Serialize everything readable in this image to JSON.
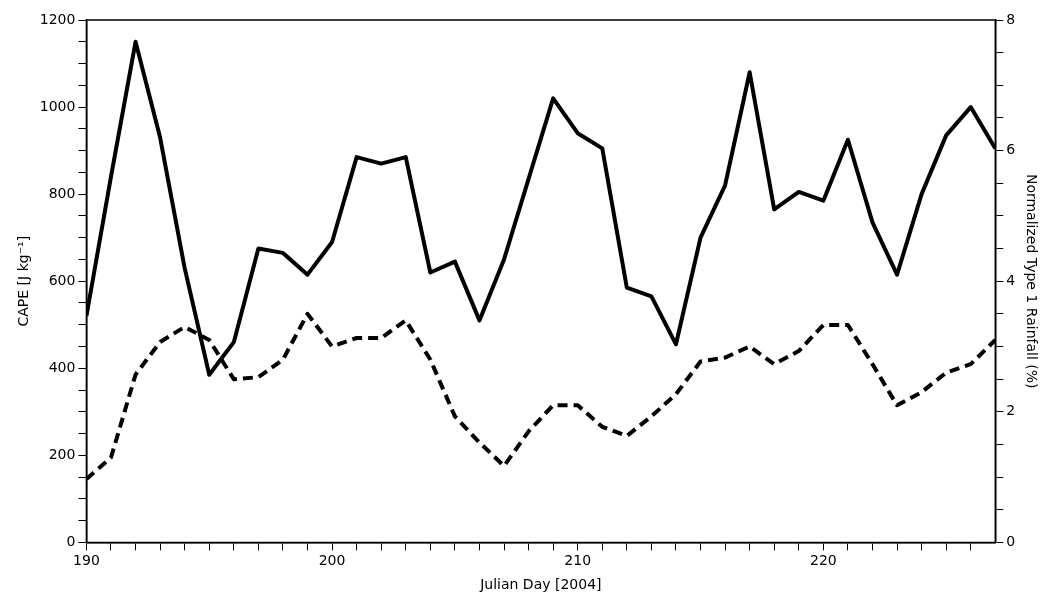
{
  "chart_data": {
    "type": "line",
    "xlabel": "Julian Day [2004]",
    "ylabel": "CAPE [J kg⁻¹]",
    "y2label": "Normalized Type 1 Rainfall (%)",
    "x": [
      190,
      191,
      192,
      193,
      194,
      195,
      196,
      197,
      198,
      199,
      200,
      201,
      202,
      203,
      204,
      205,
      206,
      207,
      208,
      209,
      210,
      211,
      212,
      213,
      214,
      215,
      216,
      217,
      218,
      219,
      220,
      221,
      222,
      223,
      224,
      225,
      226,
      227
    ],
    "series": [
      {
        "color": "#000000",
        "line_style": "solid",
        "values": [
          520,
          840,
          1150,
          930,
          630,
          385,
          460,
          675,
          665,
          615,
          690,
          885,
          870,
          885,
          620,
          645,
          510,
          650,
          835,
          1020,
          940,
          905,
          585,
          565,
          455,
          700,
          820,
          1080,
          765,
          805,
          785,
          925,
          735,
          615,
          800,
          935,
          1000,
          905
        ]
      },
      {
        "color": "#000000",
        "line_style": "dashed",
        "axis": "y2",
        "values": [
          0.97,
          1.3,
          2.57,
          3.07,
          3.3,
          3.1,
          2.5,
          2.53,
          2.8,
          3.5,
          3.0,
          3.13,
          3.13,
          3.4,
          2.8,
          1.93,
          1.53,
          1.17,
          1.7,
          2.1,
          2.1,
          1.77,
          1.63,
          1.93,
          2.27,
          2.77,
          2.83,
          3.0,
          2.73,
          2.93,
          3.33,
          3.33,
          2.73,
          2.1,
          2.3,
          2.6,
          2.73,
          3.1
        ]
      }
    ],
    "xlim": [
      190,
      227
    ],
    "xticks": [
      190,
      {
        "value": 191,
        "label": null
      },
      {
        "value": 192,
        "label": null
      },
      {
        "value": 193,
        "label": null
      },
      {
        "value": 194,
        "label": null
      },
      {
        "value": 195,
        "label": null
      },
      {
        "value": 196,
        "label": null
      },
      {
        "value": 197,
        "label": null
      },
      {
        "value": 198,
        "label": null
      },
      {
        "value": 199,
        "label": null
      },
      200,
      {
        "value": 201,
        "label": null
      },
      {
        "value": 202,
        "label": null
      },
      {
        "value": 203,
        "label": null
      },
      {
        "value": 204,
        "label": null
      },
      {
        "value": 205,
        "label": null
      },
      {
        "value": 206,
        "label": null
      },
      {
        "value": 207,
        "label": null
      },
      {
        "value": 208,
        "label": null
      },
      {
        "value": 209,
        "label": null
      },
      210,
      {
        "value": 211,
        "label": null
      },
      {
        "value": 212,
        "label": null
      },
      {
        "value": 213,
        "label": null
      },
      {
        "value": 214,
        "label": null
      },
      {
        "value": 215,
        "label": null
      },
      {
        "value": 216,
        "label": null
      },
      {
        "value": 217,
        "label": null
      },
      {
        "value": 218,
        "label": null
      },
      {
        "value": 219,
        "label": null
      },
      220,
      {
        "value": 221,
        "label": null
      },
      {
        "value": 222,
        "label": null
      },
      {
        "value": 223,
        "label": null
      },
      {
        "value": 224,
        "label": null
      },
      {
        "value": 225,
        "label": null
      },
      {
        "value": 226,
        "label": null
      }
    ],
    "ylim": [
      0,
      1200
    ],
    "yticks": [
      0,
      {
        "value": 50,
        "label": null
      },
      {
        "value": 100,
        "label": null
      },
      {
        "value": 150,
        "label": null
      },
      200,
      {
        "value": 250,
        "label": null
      },
      {
        "value": 300,
        "label": null
      },
      {
        "value": 350,
        "label": null
      },
      400,
      {
        "value": 450,
        "label": null
      },
      {
        "value": 500,
        "label": null
      },
      {
        "value": 550,
        "label": null
      },
      600,
      {
        "value": 650,
        "label": null
      },
      {
        "value": 700,
        "label": null
      },
      {
        "value": 750,
        "label": null
      },
      800,
      {
        "value": 850,
        "label": null
      },
      {
        "value": 900,
        "label": null
      },
      {
        "value": 950,
        "label": null
      },
      1000,
      {
        "value": 1050,
        "label": null
      },
      {
        "value": 1100,
        "label": null
      },
      {
        "value": 1150,
        "label": null
      },
      1200
    ],
    "y2lim": [
      0,
      8
    ],
    "y2ticks": [
      0,
      {
        "value": 0.5,
        "label": null
      },
      {
        "value": 1,
        "label": null
      },
      {
        "value": 1.5,
        "label": null
      },
      2,
      {
        "value": 2.5,
        "label": null
      },
      {
        "value": 3,
        "label": null
      },
      {
        "value": 3.5,
        "label": null
      },
      4,
      {
        "value": 4.5,
        "label": null
      },
      {
        "value": 5,
        "label": null
      },
      {
        "value": 5.5,
        "label": null
      },
      6,
      {
        "value": 6.5,
        "label": null
      },
      {
        "value": 7,
        "label": null
      },
      {
        "value": 7.5,
        "label": null
      },
      8
    ],
    "grid": false,
    "legend": false,
    "marker": "none"
  }
}
